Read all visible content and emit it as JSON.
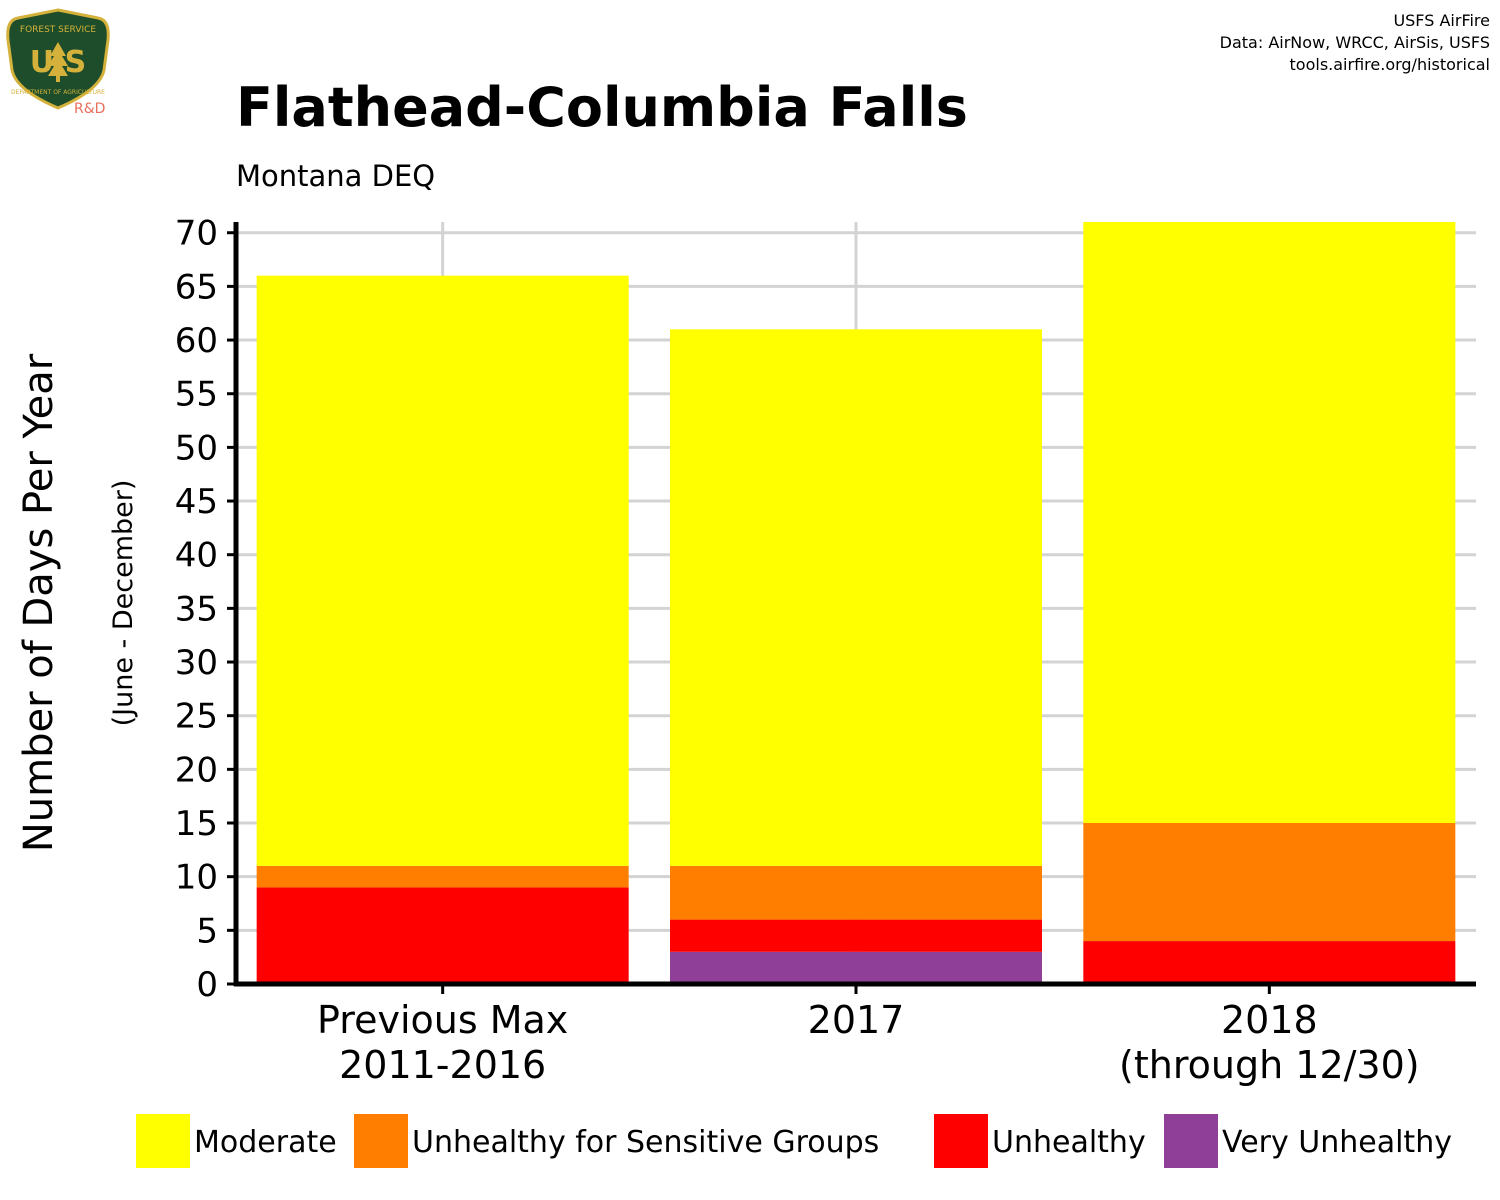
{
  "credits": {
    "line1": "USFS AirFire",
    "line2": "Data: AirNow, WRCC, AirSis, USFS",
    "line3": "tools.airfire.org/historical"
  },
  "logo": {
    "top_text": "FOREST SERVICE",
    "letters": "U S",
    "bottom_text": "DEPARTMENT OF AGRICULTURE",
    "rd_label": "R&D",
    "colors": {
      "shield_fill": "#1d4d2a",
      "shield_border": "#d4b13a",
      "rd_color": "#e8705a"
    }
  },
  "chart_data": {
    "type": "bar",
    "stacked": true,
    "title": "Flathead-Columbia Falls",
    "subtitle": "Montana DEQ",
    "ylabel": "Number of Days Per Year",
    "ylabel_sub": "(June - December)",
    "ylim": [
      0,
      71
    ],
    "yticks": [
      0,
      5,
      10,
      15,
      20,
      25,
      30,
      35,
      40,
      45,
      50,
      55,
      60,
      65,
      70
    ],
    "grid": true,
    "legend_position": "bottom",
    "categories": [
      {
        "line1": "Previous Max",
        "line2": "2011-2016"
      },
      {
        "line1": "2017",
        "line2": ""
      },
      {
        "line1": "2018",
        "line2": "(through 12/30)"
      }
    ],
    "series": [
      {
        "name": "Very Unhealthy",
        "color": "#8f3f97",
        "values": [
          0,
          3,
          0
        ]
      },
      {
        "name": "Unhealthy",
        "color": "#ff0000",
        "values": [
          9,
          3,
          4
        ]
      },
      {
        "name": "Unhealthy for Sensitive Groups",
        "color": "#ff7e00",
        "values": [
          2,
          5,
          11
        ]
      },
      {
        "name": "Moderate",
        "color": "#ffff00",
        "values": [
          55,
          50,
          56
        ]
      }
    ],
    "legend_order": [
      "Moderate",
      "Unhealthy for Sensitive Groups",
      "Unhealthy",
      "Very Unhealthy"
    ]
  }
}
